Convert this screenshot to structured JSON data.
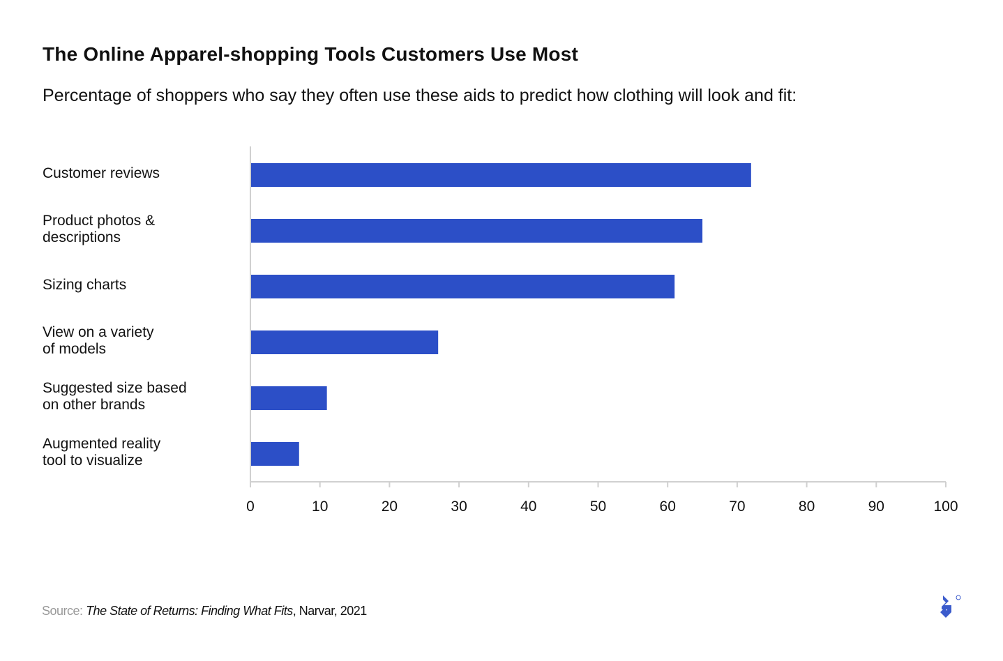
{
  "chart_data": {
    "type": "bar",
    "orientation": "horizontal",
    "title": "The Online Apparel-shopping Tools Customers Use Most",
    "subtitle": "Percentage of shoppers who say they often use these aids to predict how clothing will look and fit:",
    "categories": [
      [
        "Customer reviews"
      ],
      [
        "Product photos &",
        "descriptions"
      ],
      [
        "Sizing charts"
      ],
      [
        "View on a variety",
        "of models"
      ],
      [
        "Suggested size based",
        "on other brands"
      ],
      [
        "Augmented reality",
        "tool to visualize"
      ]
    ],
    "values": [
      72,
      65,
      61,
      27,
      11,
      7
    ],
    "xlim": [
      0,
      100
    ],
    "xticks": [
      "0",
      "10",
      "20",
      "30",
      "40",
      "50",
      "60",
      "70",
      "80",
      "90",
      "100"
    ],
    "grid": false,
    "bar_color": "#2c4fc7",
    "xlabel": "",
    "ylabel": ""
  },
  "source": {
    "label": "Source:",
    "work": "The State of Returns: Finding What Fits",
    "rest": ", Narvar, 2021"
  },
  "logo": {
    "name": "toptal-logo",
    "color": "#3b5bcc"
  }
}
